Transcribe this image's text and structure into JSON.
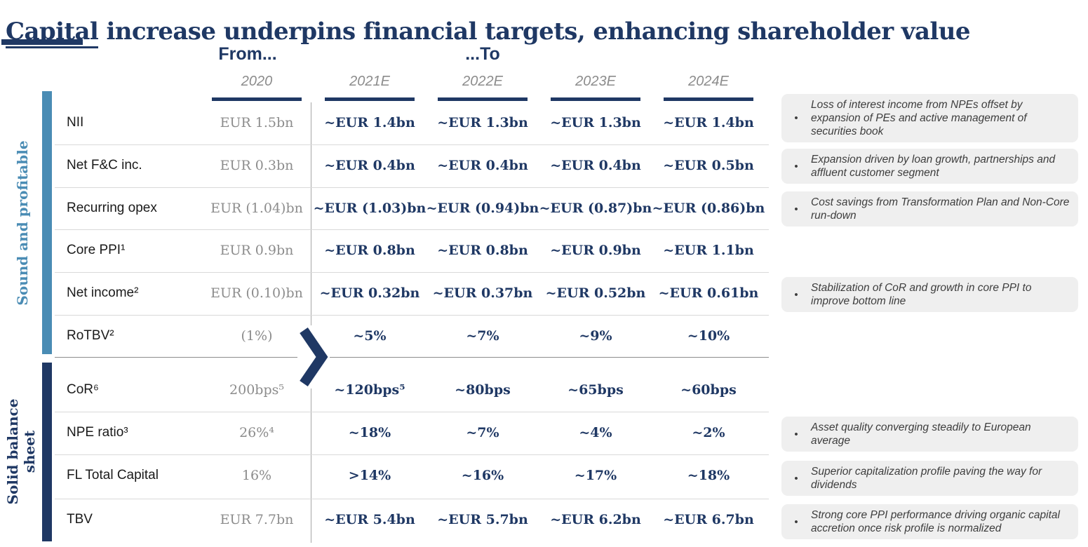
{
  "title": "Capital increase underpins financial targets, enhancing shareholder value",
  "header": {
    "from_label": "From...",
    "to_label": "...To"
  },
  "columns": [
    "2020",
    "2021E",
    "2022E",
    "2023E",
    "2024E"
  ],
  "sections": [
    {
      "side_label": "Sound and profitable",
      "rows": [
        {
          "label": "NII",
          "values": [
            "EUR 1.5bn",
            "~EUR 1.4bn",
            "~EUR 1.3bn",
            "~EUR 1.3bn",
            "~EUR 1.4bn"
          ]
        },
        {
          "label": "Net F&C inc.",
          "values": [
            "EUR 0.3bn",
            "~EUR 0.4bn",
            "~EUR 0.4bn",
            "~EUR 0.4bn",
            "~EUR 0.5bn"
          ]
        },
        {
          "label": "Recurring opex",
          "values": [
            "EUR (1.04)bn",
            "~EUR (1.03)bn",
            "~EUR (0.94)bn",
            "~EUR (0.87)bn",
            "~EUR (0.86)bn"
          ]
        },
        {
          "label": "Core PPI¹",
          "values": [
            "EUR 0.9bn",
            "~EUR 0.8bn",
            "~EUR 0.8bn",
            "~EUR 0.9bn",
            "~EUR 1.1bn"
          ]
        },
        {
          "label": "Net income²",
          "values": [
            "EUR (0.10)bn",
            "~EUR 0.32bn",
            "~EUR 0.37bn",
            "~EUR 0.52bn",
            "~EUR 0.61bn"
          ]
        },
        {
          "label": "RoTBV²",
          "values": [
            "(1%)",
            "~5%",
            "~7%",
            "~9%",
            "~10%"
          ]
        }
      ]
    },
    {
      "side_label": "Solid balance sheet",
      "rows": [
        {
          "label": "CoR⁶",
          "values": [
            "200bps⁵",
            "~120bps⁵",
            "~80bps",
            "~65bps",
            "~60bps"
          ]
        },
        {
          "label": "NPE ratio³",
          "values": [
            "26%⁴",
            "~18%",
            "~7%",
            "~4%",
            "~2%"
          ]
        },
        {
          "label": "FL Total Capital",
          "values": [
            "16%",
            ">14%",
            "~16%",
            "~17%",
            "~18%"
          ]
        },
        {
          "label": "TBV",
          "values": [
            "EUR 7.7bn",
            "~EUR 5.4bn",
            "~EUR 5.7bn",
            "~EUR 6.2bn",
            "~EUR 6.7bn"
          ]
        }
      ]
    }
  ],
  "callouts": [
    "Loss of interest income from NPEs offset by expansion of PEs and active management of securities book",
    "Expansion driven by loan growth, partnerships and affluent customer segment",
    "Cost savings from Transformation Plan and Non-Core run-down",
    "Stabilization of CoR and growth in core PPI to improve bottom line",
    "Asset quality converging steadily to European average",
    "Superior capitalization profile paving the way for dividends",
    "Strong core PPI performance driving organic capital accretion once risk profile is normalized"
  ],
  "colors": {
    "navy": "#1f3864",
    "steel_blue": "#4a8cb4",
    "gray_text": "#8c8c8c",
    "callout_bg": "#efefef",
    "separator_light": "#d9d9d9",
    "separator_dark": "#8c8c8c"
  }
}
